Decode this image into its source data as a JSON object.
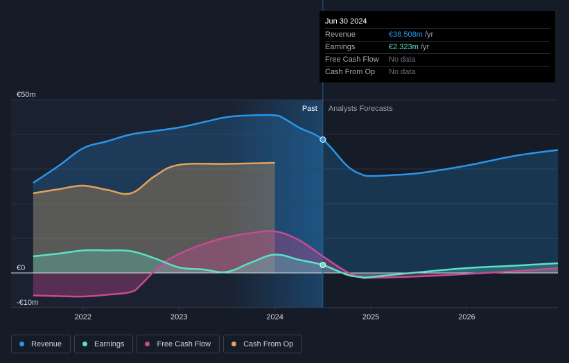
{
  "tooltip": {
    "date": "Jun 30 2024",
    "rows": [
      {
        "label": "Revenue",
        "value": "€38.508m",
        "unit": "/yr",
        "color": "#2b95e9"
      },
      {
        "label": "Earnings",
        "value": "€2.323m",
        "unit": "/yr",
        "color": "#5ce1c8"
      },
      {
        "label": "Free Cash Flow",
        "value": "No data",
        "unit": "",
        "color": ""
      },
      {
        "label": "Cash From Op",
        "value": "No data",
        "unit": "",
        "color": ""
      }
    ]
  },
  "legend": [
    {
      "label": "Revenue",
      "color": "#2b95e9"
    },
    {
      "label": "Earnings",
      "color": "#5ce1c8"
    },
    {
      "label": "Free Cash Flow",
      "color": "#c84a93"
    },
    {
      "label": "Cash From Op",
      "color": "#e4a35a"
    }
  ],
  "chart_data": {
    "type": "line",
    "title": "",
    "past_label": "Past",
    "forecast_label": "Analysts Forecasts",
    "past_boundary": 2024.5,
    "highlight_start": 2023.5,
    "y_tick_labels": [
      {
        "value": 50,
        "label": "€50m"
      },
      {
        "value": 0,
        "label": "€0"
      },
      {
        "value": -10,
        "label": "-€10m"
      }
    ],
    "xlim": [
      2021.25,
      2026.95
    ],
    "ylim": [
      -10,
      50
    ],
    "x_ticks": [
      2022,
      2023,
      2024,
      2025,
      2026
    ],
    "x_tick_labels": [
      "2022",
      "2023",
      "2024",
      "2025",
      "2026"
    ],
    "series": [
      {
        "name": "Revenue",
        "color": "#2b95e9",
        "x": [
          2021.48,
          2021.75,
          2022.0,
          2022.25,
          2022.5,
          2022.75,
          2023.0,
          2023.25,
          2023.5,
          2023.75,
          2024.0,
          2024.1,
          2024.25,
          2024.5,
          2024.75,
          2024.9,
          2025.0,
          2025.25,
          2025.5,
          2026.0,
          2026.5,
          2026.95
        ],
        "y": [
          26,
          31,
          36,
          38,
          40,
          41,
          42,
          43.5,
          45,
          45.5,
          45.5,
          44.5,
          42,
          38.5,
          31,
          28.5,
          28,
          28.3,
          28.8,
          31,
          33.8,
          35.5
        ]
      },
      {
        "name": "Earnings",
        "color": "#5ce1c8",
        "x": [
          2021.48,
          2021.75,
          2022.0,
          2022.25,
          2022.5,
          2022.75,
          2023.0,
          2023.25,
          2023.5,
          2023.75,
          2024.0,
          2024.25,
          2024.5,
          2024.75,
          2024.9,
          2025.0,
          2025.5,
          2026.0,
          2026.5,
          2026.95
        ],
        "y": [
          4.8,
          5.6,
          6.5,
          6.5,
          6.3,
          4.2,
          1.6,
          1.0,
          0.3,
          3.0,
          5.3,
          3.8,
          2.3,
          -0.5,
          -1.2,
          -1.2,
          0.2,
          1.4,
          2.1,
          2.8
        ]
      },
      {
        "name": "Free Cash Flow",
        "color": "#c84a93",
        "x": [
          2021.48,
          2021.75,
          2022.0,
          2022.25,
          2022.5,
          2022.6,
          2022.8,
          2023.0,
          2023.25,
          2023.5,
          2023.75,
          2024.0,
          2024.25,
          2024.5,
          2024.75,
          2024.9,
          2025.0,
          2025.5,
          2026.0,
          2026.5,
          2026.95
        ],
        "y": [
          -6.5,
          -6.7,
          -6.8,
          -6.3,
          -5.5,
          -3.5,
          2.0,
          5.5,
          8.3,
          10.3,
          11.5,
          12.0,
          9.5,
          4.8,
          0.3,
          -1.3,
          -1.4,
          -1.0,
          -0.3,
          0.5,
          1.4
        ]
      },
      {
        "name": "Cash From Op",
        "color": "#e4a35a",
        "x": [
          2021.48,
          2021.75,
          2022.0,
          2022.25,
          2022.5,
          2022.75,
          2023.0,
          2023.5,
          2024.0
        ],
        "y": [
          23,
          24.2,
          25.2,
          24.0,
          23.0,
          28.0,
          31.2,
          31.5,
          31.8
        ]
      }
    ],
    "markers": [
      {
        "series": "Revenue",
        "x": 2024.5,
        "y": 38.5
      },
      {
        "series": "Earnings",
        "x": 2024.5,
        "y": 2.3
      }
    ]
  }
}
